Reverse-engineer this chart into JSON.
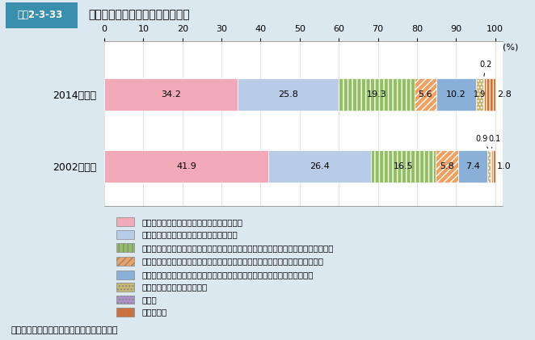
{
  "title_box": "図表2-3-33",
  "title_text": "望ましい地域での付き合いの程度",
  "years": [
    "2002年調査",
    "2014年調査"
  ],
  "categories": [
    "住民全ての間で困ったときに互いに助け合う",
    "気の合う住民の間で困ったときに助け合う",
    "困ったときに助け合うことまではしなくても、住民がみんなで行事や催しに参加する",
    "困ったときに助け合うことまではしなくても、住民の間で世間話や立ち話をする",
    "困ったときに助け合うことまではしなくても、住民の間であいさつを交わす",
    "地域での付き合いは必要ない",
    "その他",
    "わからない"
  ],
  "values_2002": [
    34.2,
    25.8,
    19.3,
    5.6,
    10.2,
    1.9,
    0.2,
    2.8
  ],
  "values_2014": [
    41.9,
    26.4,
    16.5,
    5.8,
    7.4,
    0.9,
    0.1,
    1.0
  ],
  "colors": [
    "#f2aab8",
    "#b8cce8",
    "#92c060",
    "#f0a060",
    "#8ab0d8",
    "#c8b870",
    "#b090c8",
    "#e86820"
  ],
  "hatches": [
    "",
    "",
    "|||",
    "////",
    "===",
    "....",
    "....",
    "||||"
  ],
  "background_color": "#dce8f0",
  "chart_bg": "#ffffff",
  "legend_bg": "#ffffff",
  "source": "資料：内閣府「社会意識に関する世論調査」",
  "xticks": [
    0,
    10,
    20,
    30,
    40,
    50,
    60,
    70,
    80,
    90,
    100
  ]
}
